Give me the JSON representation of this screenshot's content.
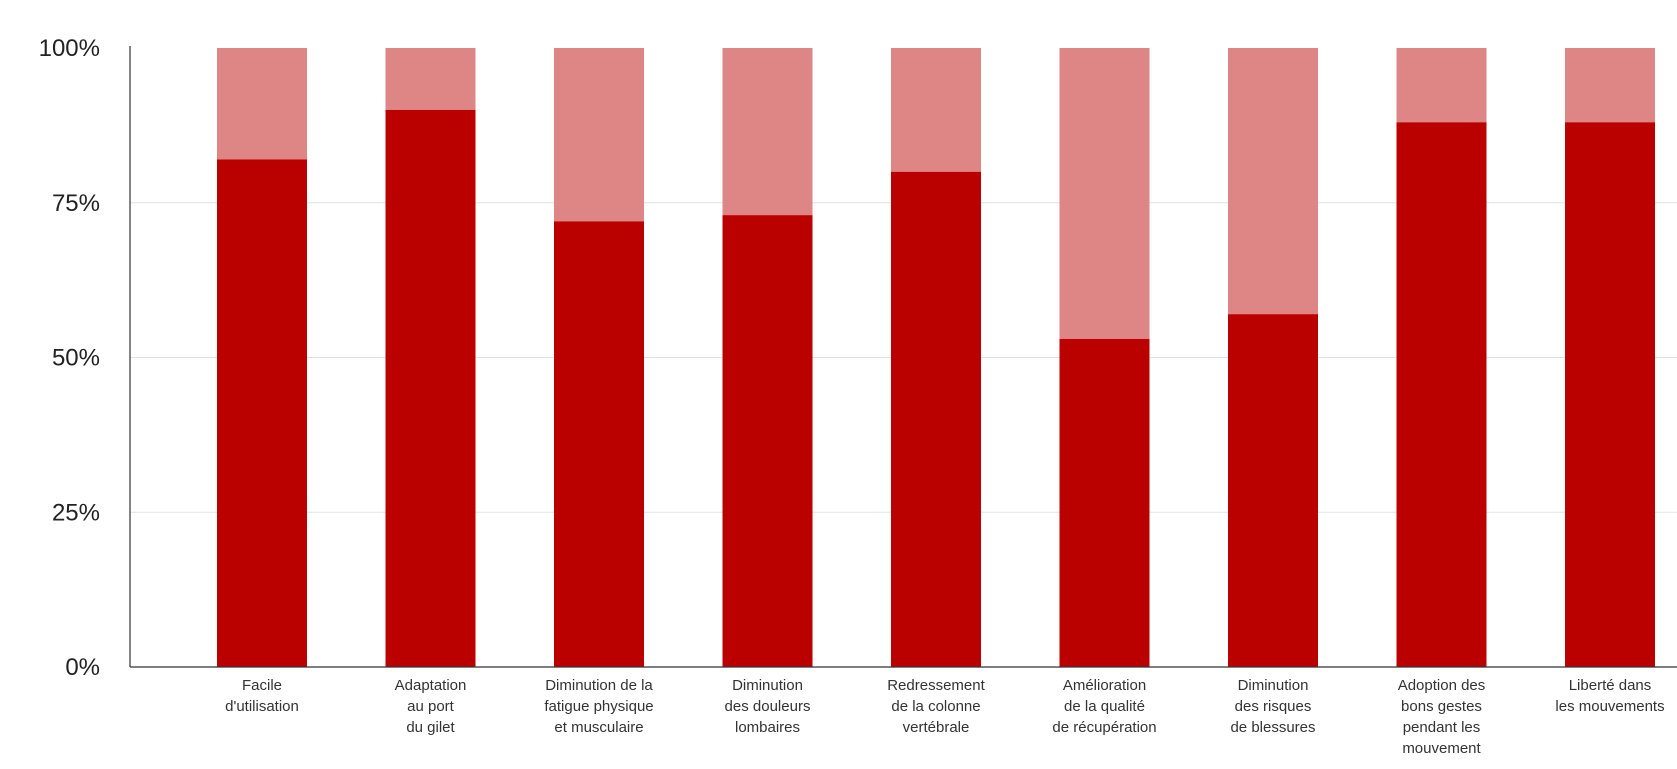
{
  "chart_data": {
    "type": "bar",
    "stacked": true,
    "categories": [
      [
        "Facile",
        "d'utilisation"
      ],
      [
        "Adaptation",
        "au port",
        "du gilet"
      ],
      [
        "Diminution de la",
        "fatigue physique",
        "et musculaire"
      ],
      [
        "Diminution",
        "des douleurs",
        "lombaires"
      ],
      [
        "Redressement",
        "de la colonne",
        "vertébrale"
      ],
      [
        "Amélioration",
        "de la qualité",
        "de récupération"
      ],
      [
        "Diminution",
        "des risques",
        "de blessures"
      ],
      [
        "Adoption des",
        "bons gestes",
        "pendant les",
        "mouvement"
      ],
      [
        "Liberté dans",
        "les mouvements"
      ]
    ],
    "series": [
      {
        "values": [
          82,
          90,
          72,
          73,
          80,
          53,
          57,
          88,
          88
        ]
      },
      {
        "values": [
          18,
          10,
          28,
          27,
          20,
          47,
          43,
          12,
          12
        ]
      }
    ],
    "yticks": [
      "0%",
      "25%",
      "50%",
      "75%",
      "100%"
    ],
    "ylim": [
      0,
      100
    ],
    "grid": true,
    "colors": {
      "primary": "#bb0000",
      "secondary": "#de8585",
      "grid": "#e2e2e2",
      "axis": "#333333"
    }
  }
}
